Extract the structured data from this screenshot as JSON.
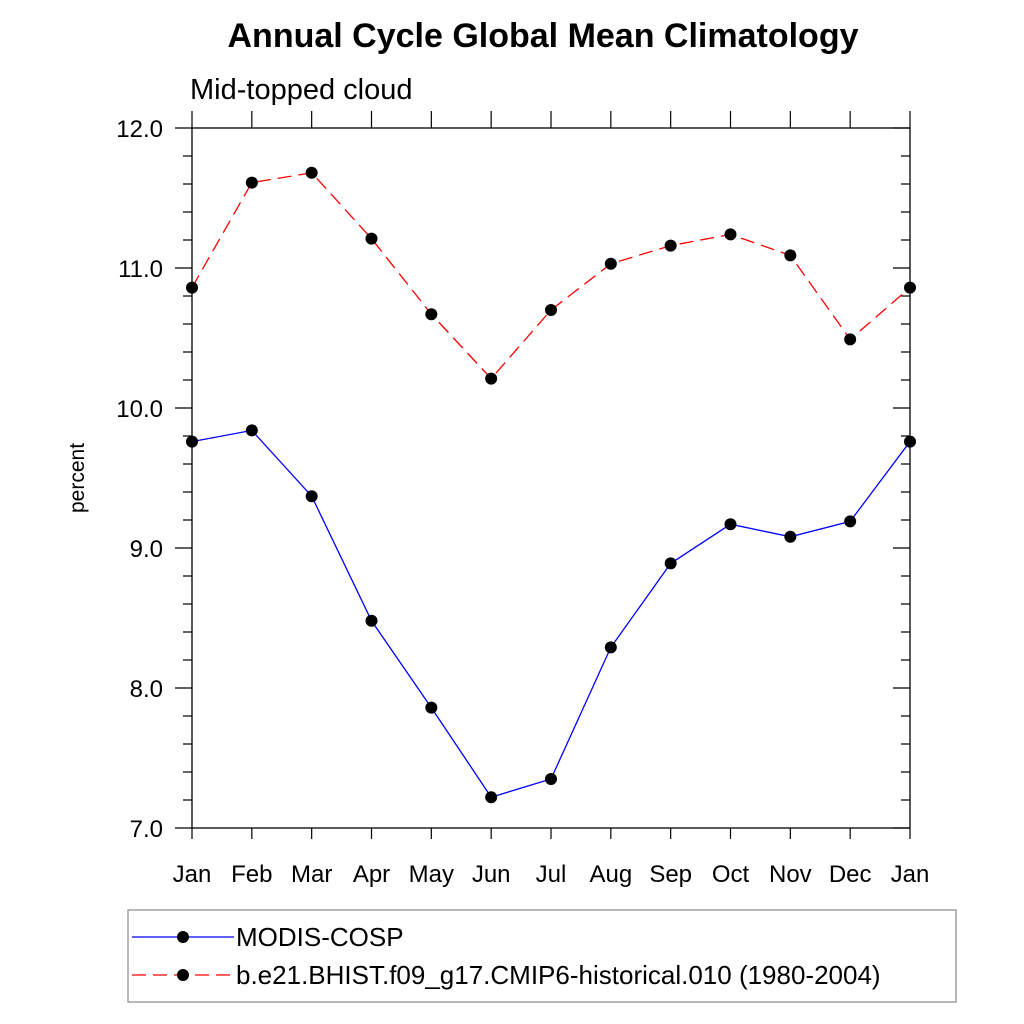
{
  "chart_data": {
    "type": "line",
    "title": "Annual Cycle Global Mean Climatology",
    "subtitle": "Mid-topped cloud",
    "xlabel": "",
    "ylabel": "percent",
    "categories": [
      "Jan",
      "Feb",
      "Mar",
      "Apr",
      "May",
      "Jun",
      "Jul",
      "Aug",
      "Sep",
      "Oct",
      "Nov",
      "Dec",
      "Jan"
    ],
    "ylim": [
      7.0,
      12.0
    ],
    "ytick_labels": [
      "7.0",
      "8.0",
      "9.0",
      "10.0",
      "11.0",
      "12.0"
    ],
    "grid": false,
    "legend_position": "bottom",
    "series": [
      {
        "name": "MODIS-COSP",
        "color": "#0000ff",
        "line_style": "solid",
        "marker": "filled-circle",
        "values": [
          9.76,
          9.84,
          9.37,
          8.48,
          7.86,
          7.22,
          7.35,
          8.29,
          8.89,
          9.17,
          9.08,
          9.19,
          9.76
        ]
      },
      {
        "name": "b.e21.BHIST.f09_g17.CMIP6-historical.010 (1980-2004)",
        "color": "#ff0000",
        "line_style": "dashed",
        "marker": "filled-circle",
        "values": [
          10.86,
          11.61,
          11.68,
          11.21,
          10.67,
          10.21,
          10.7,
          11.03,
          11.16,
          11.24,
          11.09,
          10.49,
          10.86
        ]
      }
    ]
  }
}
